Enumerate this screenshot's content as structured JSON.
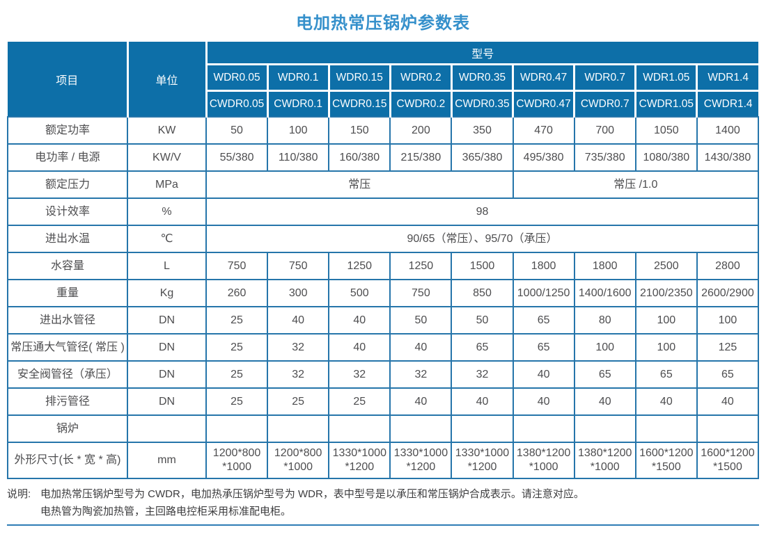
{
  "page_title": "电加热常压锅炉参数表",
  "colors": {
    "header_bg": "#0d6fa8",
    "grid_line": "#2575aa",
    "title_text": "#3590cb",
    "body_text": "#4d4d4f"
  },
  "table": {
    "corner": {
      "item": "项目",
      "unit": "单位"
    },
    "model_group_label": "型号",
    "model_rows": [
      [
        "WDR0.05",
        "WDR0.1",
        "WDR0.15",
        "WDR0.2",
        "WDR0.35",
        "WDR0.47",
        "WDR0.7",
        "WDR1.05",
        "WDR1.4"
      ],
      [
        "CWDR0.05",
        "CWDR0.1",
        "CWDR0.15",
        "CWDR0.2",
        "CWDR0.35",
        "CWDR0.47",
        "CWDR0.7",
        "CWDR1.05",
        "CWDR1.4"
      ]
    ],
    "rows": [
      {
        "label": "额定功率",
        "unit": "KW",
        "cells": [
          "50",
          "100",
          "150",
          "200",
          "350",
          "470",
          "700",
          "1050",
          "1400"
        ]
      },
      {
        "label": "电功率 / 电源",
        "unit": "KW/V",
        "cells": [
          "55/380",
          "110/380",
          "160/380",
          "215/380",
          "365/380",
          "495/380",
          "735/380",
          "1080/380",
          "1430/380"
        ]
      },
      {
        "label": "额定压力",
        "unit": "MPa",
        "cells": [
          {
            "t": "常压",
            "span": 5
          },
          {
            "t": "常压 /1.0",
            "span": 4
          }
        ]
      },
      {
        "label": "设计效率",
        "unit": "%",
        "cells": [
          {
            "t": "98",
            "span": 9
          }
        ]
      },
      {
        "label": "进出水温",
        "unit": "℃",
        "cells": [
          {
            "t": "90/65（常压）、95/70（承压）",
            "span": 9
          }
        ]
      },
      {
        "label": "水容量",
        "unit": "L",
        "cells": [
          "750",
          "750",
          "1250",
          "1250",
          "1500",
          "1800",
          "1800",
          "2500",
          "2800"
        ]
      },
      {
        "label": "重量",
        "unit": "Kg",
        "cells": [
          "260",
          "300",
          "500",
          "750",
          "850",
          "1000/1250",
          "1400/1600",
          "2100/2350",
          "2600/2900"
        ]
      },
      {
        "label": "进出水管径",
        "unit": "DN",
        "cells": [
          "25",
          "40",
          "40",
          "50",
          "50",
          "65",
          "80",
          "100",
          "100"
        ]
      },
      {
        "label": "常压通大气管径( 常压 )",
        "unit": "DN",
        "cells": [
          "25",
          "32",
          "40",
          "40",
          "65",
          "65",
          "100",
          "100",
          "125"
        ]
      },
      {
        "label": "安全阀管径（承压）",
        "unit": "DN",
        "cells": [
          "25",
          "32",
          "32",
          "32",
          "32",
          "40",
          "65",
          "65",
          "65"
        ]
      },
      {
        "label": "排污管径",
        "unit": "DN",
        "cells": [
          "25",
          "25",
          "25",
          "40",
          "40",
          "40",
          "40",
          "40",
          "40"
        ]
      },
      {
        "label": "锅炉",
        "unit": "",
        "cells": [
          "",
          "",
          "",
          "",
          "",
          "",
          "",
          "",
          ""
        ]
      },
      {
        "label": "外形尺寸(长 * 宽 * 高)",
        "unit": "mm",
        "cells": [
          "1200*800\n*1000",
          "1200*800\n*1000",
          "1330*1000\n*1200",
          "1330*1000\n*1200",
          "1330*1000\n*1200",
          "1380*1200\n*1000",
          "1380*1200\n*1000",
          "1600*1200\n*1500",
          "1600*1200\n*1500"
        ]
      }
    ]
  },
  "notes": {
    "prefix": "说明:",
    "lines": [
      "电加热常压锅炉型号为 CWDR，电加热承压锅炉型号为 WDR，表中型号是以承压和常压锅炉合成表示。请注意对应。",
      "电热管为陶瓷加热管，主回路电控柜采用标准配电柜。"
    ]
  }
}
